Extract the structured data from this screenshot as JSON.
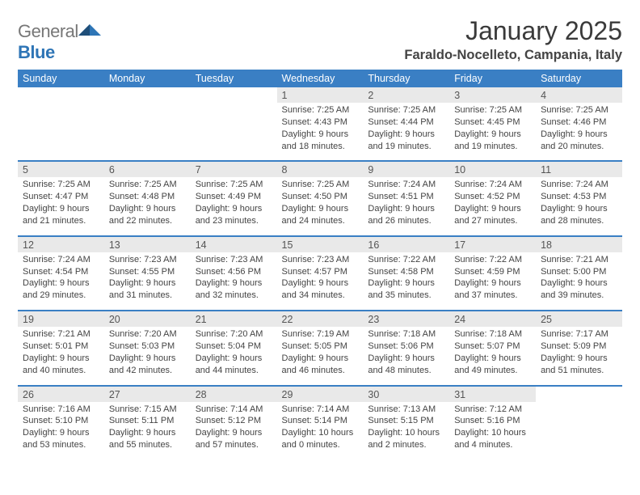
{
  "brand": {
    "part1": "General",
    "part2": "Blue"
  },
  "title": "January 2025",
  "location": "Faraldo-Nocelleto, Campania, Italy",
  "colors": {
    "header_bg": "#3a7fc4",
    "header_text": "#ffffff",
    "daynum_bg": "#e9e9e9",
    "border": "#3a7fc4",
    "body_text": "#444444"
  },
  "weekdays": [
    "Sunday",
    "Monday",
    "Tuesday",
    "Wednesday",
    "Thursday",
    "Friday",
    "Saturday"
  ],
  "weeks": [
    {
      "days": [
        {
          "n": "",
          "sunrise": "",
          "sunset": "",
          "daylight1": "",
          "daylight2": ""
        },
        {
          "n": "",
          "sunrise": "",
          "sunset": "",
          "daylight1": "",
          "daylight2": ""
        },
        {
          "n": "",
          "sunrise": "",
          "sunset": "",
          "daylight1": "",
          "daylight2": ""
        },
        {
          "n": "1",
          "sunrise": "Sunrise: 7:25 AM",
          "sunset": "Sunset: 4:43 PM",
          "daylight1": "Daylight: 9 hours",
          "daylight2": "and 18 minutes."
        },
        {
          "n": "2",
          "sunrise": "Sunrise: 7:25 AM",
          "sunset": "Sunset: 4:44 PM",
          "daylight1": "Daylight: 9 hours",
          "daylight2": "and 19 minutes."
        },
        {
          "n": "3",
          "sunrise": "Sunrise: 7:25 AM",
          "sunset": "Sunset: 4:45 PM",
          "daylight1": "Daylight: 9 hours",
          "daylight2": "and 19 minutes."
        },
        {
          "n": "4",
          "sunrise": "Sunrise: 7:25 AM",
          "sunset": "Sunset: 4:46 PM",
          "daylight1": "Daylight: 9 hours",
          "daylight2": "and 20 minutes."
        }
      ]
    },
    {
      "days": [
        {
          "n": "5",
          "sunrise": "Sunrise: 7:25 AM",
          "sunset": "Sunset: 4:47 PM",
          "daylight1": "Daylight: 9 hours",
          "daylight2": "and 21 minutes."
        },
        {
          "n": "6",
          "sunrise": "Sunrise: 7:25 AM",
          "sunset": "Sunset: 4:48 PM",
          "daylight1": "Daylight: 9 hours",
          "daylight2": "and 22 minutes."
        },
        {
          "n": "7",
          "sunrise": "Sunrise: 7:25 AM",
          "sunset": "Sunset: 4:49 PM",
          "daylight1": "Daylight: 9 hours",
          "daylight2": "and 23 minutes."
        },
        {
          "n": "8",
          "sunrise": "Sunrise: 7:25 AM",
          "sunset": "Sunset: 4:50 PM",
          "daylight1": "Daylight: 9 hours",
          "daylight2": "and 24 minutes."
        },
        {
          "n": "9",
          "sunrise": "Sunrise: 7:24 AM",
          "sunset": "Sunset: 4:51 PM",
          "daylight1": "Daylight: 9 hours",
          "daylight2": "and 26 minutes."
        },
        {
          "n": "10",
          "sunrise": "Sunrise: 7:24 AM",
          "sunset": "Sunset: 4:52 PM",
          "daylight1": "Daylight: 9 hours",
          "daylight2": "and 27 minutes."
        },
        {
          "n": "11",
          "sunrise": "Sunrise: 7:24 AM",
          "sunset": "Sunset: 4:53 PM",
          "daylight1": "Daylight: 9 hours",
          "daylight2": "and 28 minutes."
        }
      ]
    },
    {
      "days": [
        {
          "n": "12",
          "sunrise": "Sunrise: 7:24 AM",
          "sunset": "Sunset: 4:54 PM",
          "daylight1": "Daylight: 9 hours",
          "daylight2": "and 29 minutes."
        },
        {
          "n": "13",
          "sunrise": "Sunrise: 7:23 AM",
          "sunset": "Sunset: 4:55 PM",
          "daylight1": "Daylight: 9 hours",
          "daylight2": "and 31 minutes."
        },
        {
          "n": "14",
          "sunrise": "Sunrise: 7:23 AM",
          "sunset": "Sunset: 4:56 PM",
          "daylight1": "Daylight: 9 hours",
          "daylight2": "and 32 minutes."
        },
        {
          "n": "15",
          "sunrise": "Sunrise: 7:23 AM",
          "sunset": "Sunset: 4:57 PM",
          "daylight1": "Daylight: 9 hours",
          "daylight2": "and 34 minutes."
        },
        {
          "n": "16",
          "sunrise": "Sunrise: 7:22 AM",
          "sunset": "Sunset: 4:58 PM",
          "daylight1": "Daylight: 9 hours",
          "daylight2": "and 35 minutes."
        },
        {
          "n": "17",
          "sunrise": "Sunrise: 7:22 AM",
          "sunset": "Sunset: 4:59 PM",
          "daylight1": "Daylight: 9 hours",
          "daylight2": "and 37 minutes."
        },
        {
          "n": "18",
          "sunrise": "Sunrise: 7:21 AM",
          "sunset": "Sunset: 5:00 PM",
          "daylight1": "Daylight: 9 hours",
          "daylight2": "and 39 minutes."
        }
      ]
    },
    {
      "days": [
        {
          "n": "19",
          "sunrise": "Sunrise: 7:21 AM",
          "sunset": "Sunset: 5:01 PM",
          "daylight1": "Daylight: 9 hours",
          "daylight2": "and 40 minutes."
        },
        {
          "n": "20",
          "sunrise": "Sunrise: 7:20 AM",
          "sunset": "Sunset: 5:03 PM",
          "daylight1": "Daylight: 9 hours",
          "daylight2": "and 42 minutes."
        },
        {
          "n": "21",
          "sunrise": "Sunrise: 7:20 AM",
          "sunset": "Sunset: 5:04 PM",
          "daylight1": "Daylight: 9 hours",
          "daylight2": "and 44 minutes."
        },
        {
          "n": "22",
          "sunrise": "Sunrise: 7:19 AM",
          "sunset": "Sunset: 5:05 PM",
          "daylight1": "Daylight: 9 hours",
          "daylight2": "and 46 minutes."
        },
        {
          "n": "23",
          "sunrise": "Sunrise: 7:18 AM",
          "sunset": "Sunset: 5:06 PM",
          "daylight1": "Daylight: 9 hours",
          "daylight2": "and 48 minutes."
        },
        {
          "n": "24",
          "sunrise": "Sunrise: 7:18 AM",
          "sunset": "Sunset: 5:07 PM",
          "daylight1": "Daylight: 9 hours",
          "daylight2": "and 49 minutes."
        },
        {
          "n": "25",
          "sunrise": "Sunrise: 7:17 AM",
          "sunset": "Sunset: 5:09 PM",
          "daylight1": "Daylight: 9 hours",
          "daylight2": "and 51 minutes."
        }
      ]
    },
    {
      "days": [
        {
          "n": "26",
          "sunrise": "Sunrise: 7:16 AM",
          "sunset": "Sunset: 5:10 PM",
          "daylight1": "Daylight: 9 hours",
          "daylight2": "and 53 minutes."
        },
        {
          "n": "27",
          "sunrise": "Sunrise: 7:15 AM",
          "sunset": "Sunset: 5:11 PM",
          "daylight1": "Daylight: 9 hours",
          "daylight2": "and 55 minutes."
        },
        {
          "n": "28",
          "sunrise": "Sunrise: 7:14 AM",
          "sunset": "Sunset: 5:12 PM",
          "daylight1": "Daylight: 9 hours",
          "daylight2": "and 57 minutes."
        },
        {
          "n": "29",
          "sunrise": "Sunrise: 7:14 AM",
          "sunset": "Sunset: 5:14 PM",
          "daylight1": "Daylight: 10 hours",
          "daylight2": "and 0 minutes."
        },
        {
          "n": "30",
          "sunrise": "Sunrise: 7:13 AM",
          "sunset": "Sunset: 5:15 PM",
          "daylight1": "Daylight: 10 hours",
          "daylight2": "and 2 minutes."
        },
        {
          "n": "31",
          "sunrise": "Sunrise: 7:12 AM",
          "sunset": "Sunset: 5:16 PM",
          "daylight1": "Daylight: 10 hours",
          "daylight2": "and 4 minutes."
        },
        {
          "n": "",
          "sunrise": "",
          "sunset": "",
          "daylight1": "",
          "daylight2": ""
        }
      ]
    }
  ]
}
